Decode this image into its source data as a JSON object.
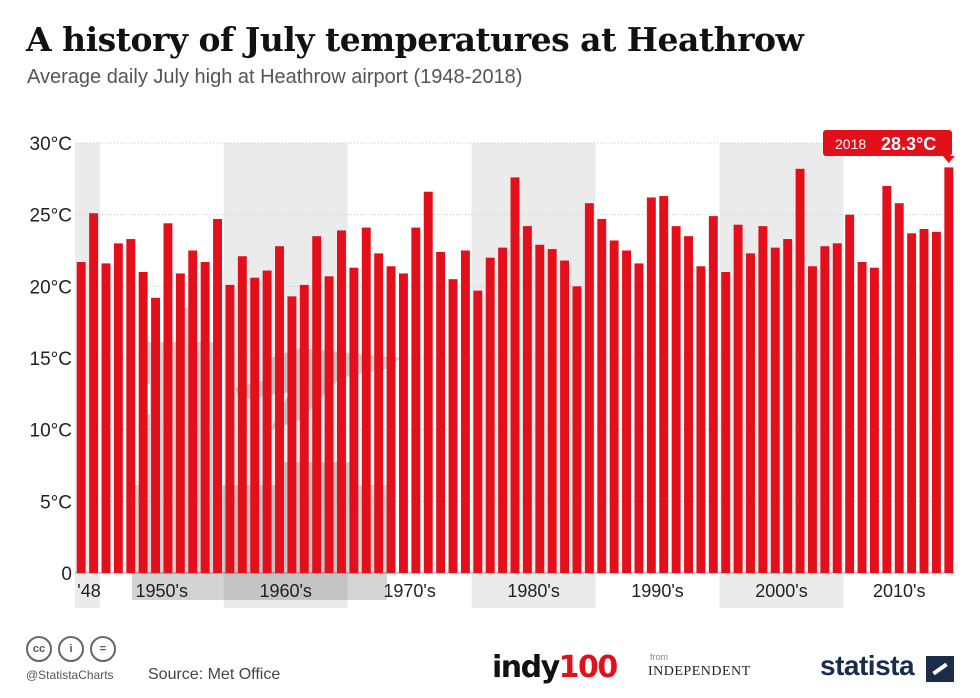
{
  "header": {
    "title": "A history of July temperatures at Heathrow",
    "subtitle": "Average daily July high at Heathrow airport (1948-2018)"
  },
  "footer": {
    "handle": "@StatistaCharts",
    "source_label": "Source:",
    "source_value": "Met Office",
    "cc_icons": [
      "cc-icon",
      "by-icon",
      "equals-icon"
    ],
    "cc_text": [
      "cc",
      "i",
      "="
    ],
    "brand_indy_black": "indy",
    "brand_indy_red": "100",
    "from_label": "from",
    "brand_independent": "INDEPENDENT",
    "brand_statista": "statista"
  },
  "colors": {
    "bar": "#e3101c",
    "decade_band": "#ebebeb",
    "callout": "#e3101c",
    "axis_text": "#222222"
  },
  "chart_data": {
    "type": "bar",
    "years": [
      1948,
      1949,
      1950,
      1951,
      1952,
      1953,
      1954,
      1955,
      1956,
      1957,
      1958,
      1959,
      1960,
      1961,
      1962,
      1963,
      1964,
      1965,
      1966,
      1967,
      1968,
      1969,
      1970,
      1971,
      1972,
      1973,
      1974,
      1975,
      1976,
      1977,
      1978,
      1979,
      1980,
      1981,
      1982,
      1983,
      1984,
      1985,
      1986,
      1987,
      1988,
      1989,
      1990,
      1991,
      1992,
      1993,
      1994,
      1995,
      1996,
      1997,
      1998,
      1999,
      2000,
      2001,
      2002,
      2003,
      2004,
      2005,
      2006,
      2007,
      2008,
      2009,
      2010,
      2011,
      2012,
      2013,
      2014,
      2015,
      2016,
      2017,
      2018
    ],
    "values": [
      21.7,
      25.1,
      21.6,
      23.0,
      23.3,
      21.0,
      19.2,
      24.4,
      20.9,
      22.5,
      21.7,
      24.7,
      20.1,
      22.1,
      20.6,
      21.1,
      22.8,
      19.3,
      20.1,
      23.5,
      20.7,
      23.9,
      21.3,
      24.1,
      22.3,
      21.4,
      20.9,
      24.1,
      26.6,
      22.4,
      20.5,
      22.5,
      19.7,
      22.0,
      22.7,
      27.6,
      24.2,
      22.9,
      22.6,
      21.8,
      20.0,
      25.8,
      24.7,
      23.2,
      22.5,
      21.6,
      26.2,
      26.3,
      24.2,
      23.5,
      21.4,
      24.9,
      21.0,
      24.3,
      22.3,
      24.2,
      22.7,
      23.3,
      28.2,
      21.4,
      22.8,
      23.0,
      25.0,
      21.7,
      21.3,
      27.0,
      25.8,
      23.7,
      24.0,
      23.8,
      28.3
    ],
    "y_ticks": [
      "0",
      "5°C",
      "10°C",
      "15°C",
      "20°C",
      "25°C",
      "30°C"
    ],
    "y_tick_values": [
      0,
      5,
      10,
      15,
      20,
      25,
      30
    ],
    "ylim": [
      0,
      30
    ],
    "decade_labels": [
      {
        "label": "'48",
        "start": 1948,
        "end": 1949
      },
      {
        "label": "1950's",
        "start": 1950,
        "end": 1959
      },
      {
        "label": "1960's",
        "start": 1960,
        "end": 1969
      },
      {
        "label": "1970's",
        "start": 1970,
        "end": 1979
      },
      {
        "label": "1980's",
        "start": 1980,
        "end": 1989
      },
      {
        "label": "1990's",
        "start": 1990,
        "end": 1999
      },
      {
        "label": "2000's",
        "start": 2000,
        "end": 2009
      },
      {
        "label": "2010's",
        "start": 2010,
        "end": 2018
      }
    ],
    "shaded_decades": [
      1948,
      1960,
      1980,
      2000
    ],
    "callout": {
      "year_label": "2018",
      "value_label": "28.3°C",
      "year": 2018
    },
    "grid": true,
    "xlabel": "",
    "ylabel": ""
  }
}
